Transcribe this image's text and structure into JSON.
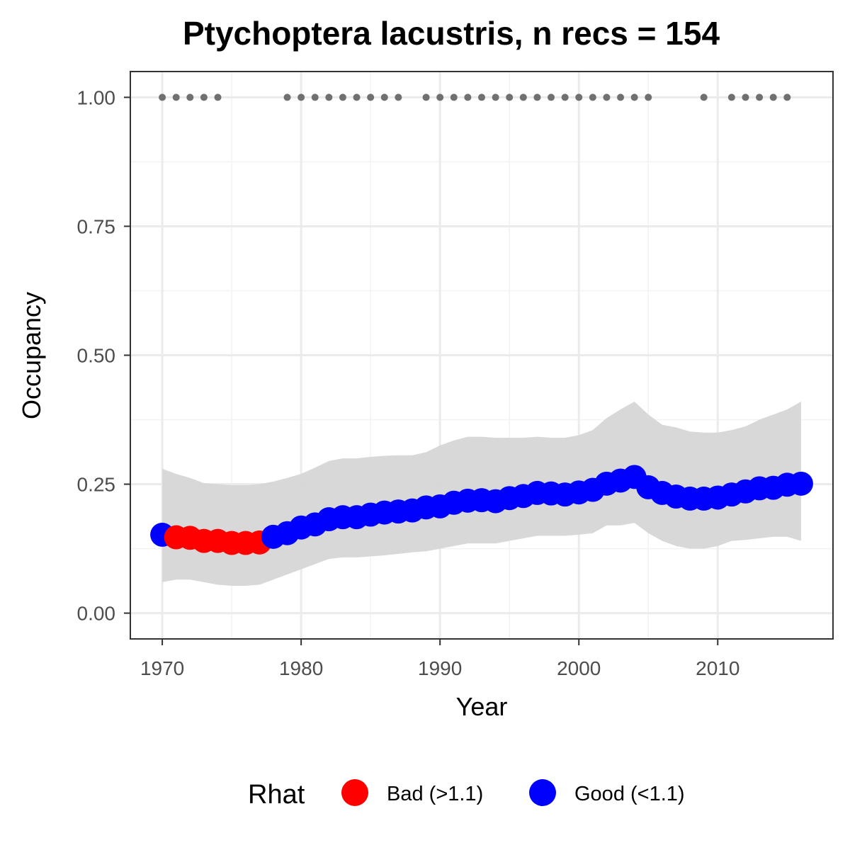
{
  "chart_data": {
    "type": "line",
    "title": "Ptychoptera lacustris, n recs = 154",
    "xlabel": "Year",
    "ylabel": "Occupancy",
    "xlim": [
      1967.7,
      2018.3
    ],
    "ylim": [
      -0.05,
      1.05
    ],
    "xticks": [
      1970,
      1980,
      1990,
      2000,
      2010
    ],
    "xtick_labels": [
      "1970",
      "1980",
      "1990",
      "2000",
      "2010"
    ],
    "yticks": [
      0,
      0.25,
      0.5,
      0.75,
      1.0
    ],
    "ytick_labels": [
      "0.00",
      "0.25",
      "0.50",
      "0.75",
      "1.00"
    ],
    "grid": true,
    "legend": {
      "title": "Rhat",
      "position": "bottom",
      "entries": [
        {
          "label": "Bad (>1.1)",
          "color": "#ff0000"
        },
        {
          "label": "Good (<1.1)",
          "color": "#0000ff"
        }
      ]
    },
    "colors": {
      "bad": "#ff0000",
      "good": "#0000ff",
      "ribbon": "#d6d6d6",
      "records": "#707070"
    },
    "x": [
      1970,
      1971,
      1972,
      1973,
      1974,
      1975,
      1976,
      1977,
      1978,
      1979,
      1980,
      1981,
      1982,
      1983,
      1984,
      1985,
      1986,
      1987,
      1988,
      1989,
      1990,
      1991,
      1992,
      1993,
      1994,
      1995,
      1996,
      1997,
      1998,
      1999,
      2000,
      2001,
      2002,
      2003,
      2004,
      2005,
      2006,
      2007,
      2008,
      2009,
      2010,
      2011,
      2012,
      2013,
      2014,
      2015,
      2016
    ],
    "occupancy": [
      0.152,
      0.147,
      0.146,
      0.14,
      0.14,
      0.136,
      0.136,
      0.137,
      0.148,
      0.155,
      0.166,
      0.172,
      0.182,
      0.186,
      0.186,
      0.191,
      0.195,
      0.197,
      0.199,
      0.205,
      0.207,
      0.214,
      0.218,
      0.219,
      0.217,
      0.223,
      0.227,
      0.233,
      0.232,
      0.23,
      0.234,
      0.239,
      0.251,
      0.257,
      0.264,
      0.244,
      0.233,
      0.226,
      0.222,
      0.222,
      0.224,
      0.23,
      0.236,
      0.242,
      0.243,
      0.249,
      0.251
    ],
    "rhat_bad": [
      false,
      true,
      true,
      true,
      true,
      true,
      true,
      true,
      false,
      false,
      false,
      false,
      false,
      false,
      false,
      false,
      false,
      false,
      false,
      false,
      false,
      false,
      false,
      false,
      false,
      false,
      false,
      false,
      false,
      false,
      false,
      false,
      false,
      false,
      false,
      false,
      false,
      false,
      false,
      false,
      false,
      false,
      false,
      false,
      false,
      false,
      false
    ],
    "lower": [
      0.06,
      0.065,
      0.065,
      0.06,
      0.055,
      0.053,
      0.053,
      0.055,
      0.065,
      0.075,
      0.085,
      0.095,
      0.105,
      0.108,
      0.108,
      0.11,
      0.112,
      0.115,
      0.118,
      0.12,
      0.125,
      0.13,
      0.135,
      0.135,
      0.135,
      0.14,
      0.145,
      0.15,
      0.15,
      0.15,
      0.152,
      0.155,
      0.17,
      0.17,
      0.175,
      0.155,
      0.14,
      0.13,
      0.125,
      0.125,
      0.13,
      0.14,
      0.142,
      0.145,
      0.148,
      0.148,
      0.14
    ],
    "upper": [
      0.28,
      0.27,
      0.262,
      0.252,
      0.25,
      0.248,
      0.248,
      0.25,
      0.255,
      0.262,
      0.27,
      0.282,
      0.295,
      0.3,
      0.3,
      0.303,
      0.305,
      0.306,
      0.306,
      0.312,
      0.325,
      0.335,
      0.342,
      0.342,
      0.34,
      0.34,
      0.34,
      0.342,
      0.34,
      0.34,
      0.345,
      0.355,
      0.378,
      0.395,
      0.41,
      0.385,
      0.365,
      0.36,
      0.352,
      0.35,
      0.35,
      0.355,
      0.362,
      0.375,
      0.385,
      0.395,
      0.41
    ],
    "record_years": [
      1970,
      1971,
      1972,
      1973,
      1974,
      1979,
      1980,
      1981,
      1982,
      1983,
      1984,
      1985,
      1986,
      1987,
      1989,
      1990,
      1991,
      1992,
      1993,
      1994,
      1995,
      1996,
      1997,
      1998,
      1999,
      2000,
      2001,
      2002,
      2003,
      2004,
      2005,
      2009,
      2011,
      2012,
      2013,
      2014,
      2015
    ],
    "record_value": 1.0
  }
}
